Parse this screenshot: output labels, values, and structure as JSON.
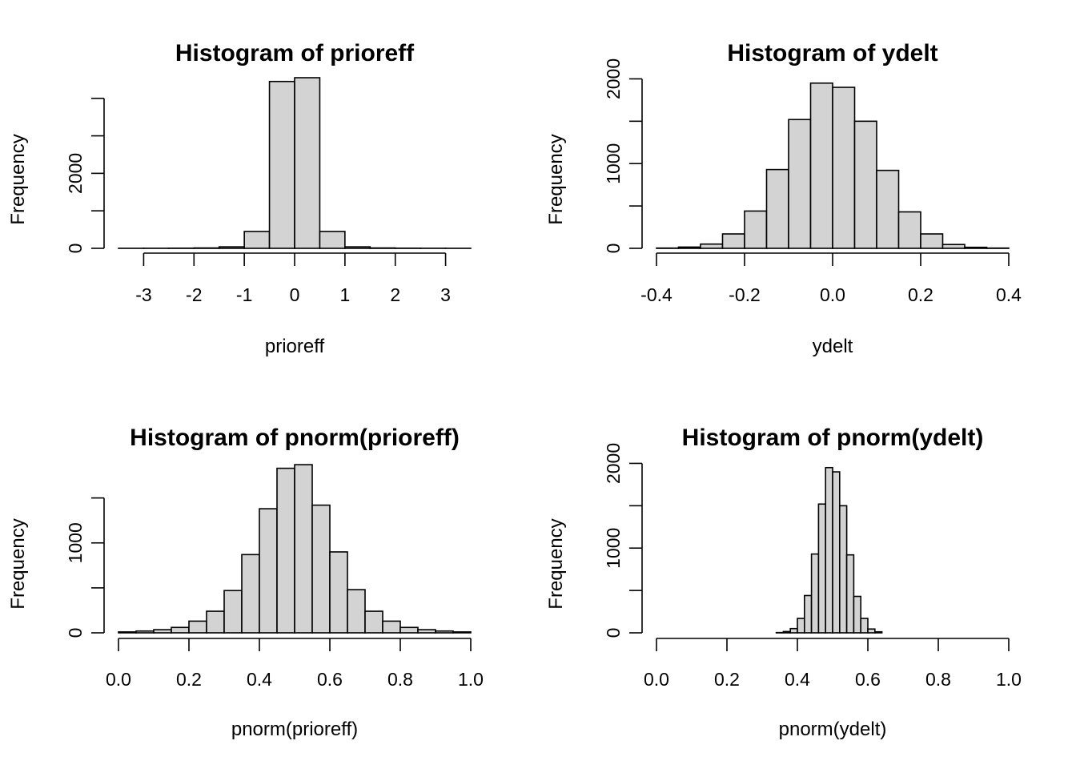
{
  "colors": {
    "bar_fill": "#d3d3d3",
    "bar_stroke": "#000000",
    "background": "#ffffff"
  },
  "chart_data": [
    {
      "type": "bar",
      "title": "Histogram of prioreff",
      "xlabel": "prioreff",
      "ylabel": "Frequency",
      "breaks": [
        -3.5,
        -3,
        -2.5,
        -2,
        -1.5,
        -1,
        -0.5,
        0,
        0.5,
        1,
        1.5,
        2,
        2.5,
        3,
        3.5
      ],
      "values": [
        1,
        2,
        4,
        10,
        40,
        450,
        4450,
        4550,
        450,
        40,
        10,
        4,
        2,
        1
      ],
      "xticks": [
        -3,
        -2,
        -1,
        0,
        1,
        2,
        3
      ],
      "xtick_labels": [
        "-3",
        "-2",
        "-1",
        "0",
        "1",
        "2",
        "3"
      ],
      "yticks": [
        0,
        1000,
        2000,
        3000,
        4000
      ],
      "ytick_labels": [
        "0",
        "",
        "2000",
        "",
        ""
      ],
      "xlim": [
        -3.5,
        3.5
      ],
      "ylim": [
        0,
        4700
      ],
      "grid": false
    },
    {
      "type": "bar",
      "title": "Histogram of ydelt",
      "xlabel": "ydelt",
      "ylabel": "Frequency",
      "breaks": [
        -0.4,
        -0.35,
        -0.3,
        -0.25,
        -0.2,
        -0.15,
        -0.1,
        -0.05,
        0,
        0.05,
        0.1,
        0.15,
        0.2,
        0.25,
        0.3,
        0.35,
        0.4
      ],
      "values": [
        3,
        15,
        50,
        170,
        440,
        930,
        1520,
        1950,
        1900,
        1500,
        920,
        430,
        170,
        45,
        12,
        3
      ],
      "xticks": [
        -0.4,
        -0.2,
        0,
        0.2,
        0.4
      ],
      "xtick_labels": [
        "-0.4",
        "-0.2",
        "0.0",
        "0.2",
        "0.4"
      ],
      "yticks": [
        0,
        500,
        1000,
        1500,
        2000
      ],
      "ytick_labels": [
        "0",
        "",
        "1000",
        "",
        "2000"
      ],
      "xlim": [
        -0.4,
        0.4
      ],
      "ylim": [
        0,
        2080
      ],
      "grid": false
    },
    {
      "type": "bar",
      "title": "Histogram of pnorm(prioreff)",
      "xlabel": "pnorm(prioreff)",
      "ylabel": "Frequency",
      "breaks": [
        0,
        0.05,
        0.1,
        0.15,
        0.2,
        0.25,
        0.3,
        0.35,
        0.4,
        0.45,
        0.5,
        0.55,
        0.6,
        0.65,
        0.7,
        0.75,
        0.8,
        0.85,
        0.9,
        0.95,
        1.0
      ],
      "values": [
        10,
        20,
        35,
        60,
        130,
        240,
        470,
        870,
        1380,
        1830,
        1870,
        1420,
        900,
        480,
        240,
        130,
        60,
        35,
        20,
        10
      ],
      "xticks": [
        0,
        0.2,
        0.4,
        0.6,
        0.8,
        1.0
      ],
      "xtick_labels": [
        "0.0",
        "0.2",
        "0.4",
        "0.6",
        "0.8",
        "1.0"
      ],
      "yticks": [
        0,
        500,
        1000,
        1500
      ],
      "ytick_labels": [
        "0",
        "",
        "1000",
        ""
      ],
      "xlim": [
        0,
        1
      ],
      "ylim": [
        0,
        1960
      ],
      "grid": false
    },
    {
      "type": "bar",
      "title": "Histogram of pnorm(ydelt)",
      "xlabel": "pnorm(ydelt)",
      "ylabel": "Frequency",
      "breaks": [
        0.34,
        0.36,
        0.38,
        0.4,
        0.42,
        0.44,
        0.46,
        0.48,
        0.5,
        0.52,
        0.54,
        0.56,
        0.58,
        0.6,
        0.62,
        0.64
      ],
      "values": [
        3,
        15,
        50,
        170,
        440,
        930,
        1520,
        1950,
        1900,
        1500,
        920,
        430,
        170,
        45,
        12
      ],
      "xticks": [
        0,
        0.2,
        0.4,
        0.6,
        0.8,
        1.0
      ],
      "xtick_labels": [
        "0.0",
        "0.2",
        "0.4",
        "0.6",
        "0.8",
        "1.0"
      ],
      "yticks": [
        0,
        500,
        1000,
        1500,
        2000
      ],
      "ytick_labels": [
        "0",
        "",
        "1000",
        "",
        "2000"
      ],
      "xlim": [
        0,
        1
      ],
      "ylim": [
        0,
        2080
      ],
      "grid": false
    }
  ]
}
